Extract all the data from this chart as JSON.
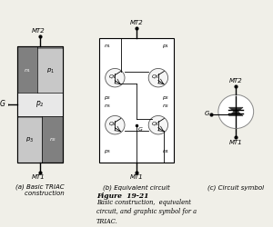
{
  "title": "Figure  19-21",
  "subtitle": "Basic construction,  equivalent\ncircuit, and graphic symbol for a\nTRIAC.",
  "caption_a": "(a) Basic TRIAC\n    construction",
  "caption_b": "(b) Equivalent circuit",
  "caption_c": "(c) Circuit symbol",
  "bg_color": "#f0efe8",
  "p_light": "#c8c8c8",
  "n_dark": "#808080",
  "p2_white": "#e8e8e8",
  "p_inner_white": "#f0f0f0"
}
